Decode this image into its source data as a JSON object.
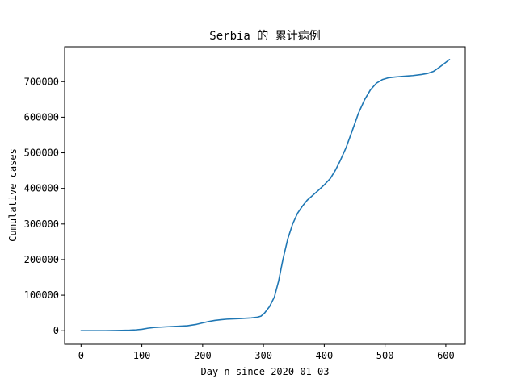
{
  "chart_data": {
    "type": "line",
    "title": "Serbia 的 累计病例",
    "xlabel": "Day n since 2020-01-03",
    "ylabel": "Cumulative cases",
    "xlim": [
      -27,
      632
    ],
    "ylim": [
      -38000,
      798000
    ],
    "xticks": [
      0,
      100,
      200,
      300,
      400,
      500,
      600
    ],
    "yticks": [
      0,
      100000,
      200000,
      300000,
      400000,
      500000,
      600000,
      700000
    ],
    "grid": false,
    "legend": "none",
    "line_color": "#1f77b4",
    "series": [
      {
        "x": [
          0,
          20,
          40,
          60,
          80,
          90,
          100,
          110,
          120,
          140,
          160,
          175,
          190,
          200,
          210,
          220,
          230,
          240,
          260,
          280,
          290,
          296,
          302,
          310,
          318,
          325,
          332,
          340,
          348,
          356,
          364,
          372,
          380,
          390,
          400,
          410,
          418,
          426,
          436,
          446,
          456,
          466,
          476,
          486,
          496,
          506,
          516,
          530,
          546,
          560,
          570,
          580,
          590,
          600,
          606
        ],
        "y": [
          0,
          0,
          200,
          600,
          1500,
          2500,
          4000,
          7000,
          9000,
          11000,
          12500,
          14000,
          18000,
          22000,
          26000,
          29000,
          31000,
          32500,
          34000,
          36000,
          38000,
          41000,
          50000,
          68000,
          95000,
          140000,
          200000,
          258000,
          300000,
          330000,
          350000,
          367000,
          379000,
          394000,
          410000,
          428000,
          450000,
          477000,
          515000,
          562000,
          610000,
          648000,
          677000,
          696000,
          706000,
          711000,
          713000,
          715000,
          717000,
          720000,
          723000,
          729000,
          741000,
          754000,
          762000
        ]
      }
    ]
  }
}
